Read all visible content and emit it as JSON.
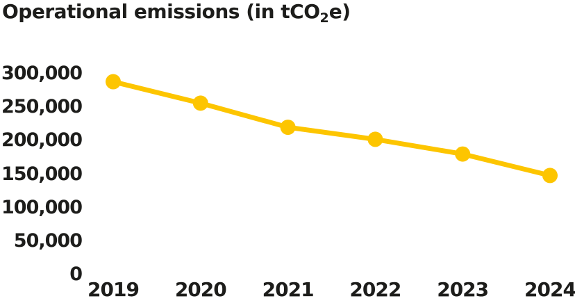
{
  "title": {
    "text_main": "Operational emissions (in tCO",
    "subscript": "2",
    "text_end": "e)"
  },
  "colors": {
    "line": "#FDC500",
    "text": "#1D1D1B",
    "background": "#FFFFFF"
  },
  "chart_data": {
    "type": "line",
    "title": "Operational emissions (in tCO2e)",
    "categories": [
      "2019",
      "2020",
      "2021",
      "2022",
      "2023",
      "2024"
    ],
    "series": [
      {
        "name": "Operational emissions (tCO2e)",
        "values": [
          288000,
          256000,
          220000,
          202000,
          180000,
          148000
        ]
      }
    ],
    "xlabel": "",
    "ylabel": "",
    "ylim": [
      0,
      300000
    ],
    "y_ticks": [
      300000,
      250000,
      200000,
      150000,
      100000,
      50000,
      0
    ],
    "y_tick_labels": [
      "300,000",
      "250,000",
      "200,000",
      "150,000",
      "100,000",
      "50,000",
      "0"
    ],
    "grid": false,
    "legend": "none",
    "marker": "circle"
  }
}
